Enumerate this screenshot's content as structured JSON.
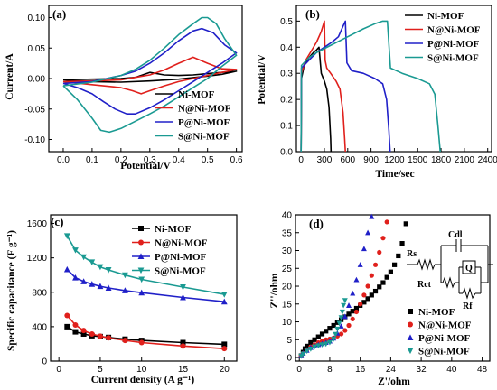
{
  "colors": {
    "ni": "#000000",
    "n": "#e0201c",
    "p": "#2020c8",
    "s": "#1a9a92"
  },
  "circuit": {
    "rs": "Rs",
    "cdl": "Cdl",
    "q": "Q",
    "rct": "Rct",
    "rf": "Rf"
  },
  "chart_data": [
    {
      "type": "line",
      "panel_label": "(a)",
      "xlabel": "Potential/V",
      "ylabel": "Current/A",
      "xlim": [
        -0.05,
        0.62
      ],
      "ylim": [
        -0.12,
        0.12
      ],
      "xticks": [
        0.0,
        0.1,
        0.2,
        0.3,
        0.4,
        0.5,
        0.6
      ],
      "yticks": [
        -0.1,
        -0.05,
        0.0,
        0.05,
        0.1
      ],
      "xtick_labels": [
        "0.0",
        "0.1",
        "0.2",
        "0.3",
        "0.4",
        "0.5",
        "0.6"
      ],
      "ytick_labels": [
        "-0.10",
        "-0.05",
        "0.00",
        "0.05",
        "0.10"
      ],
      "legend_position": "bottom-right",
      "series": [
        {
          "name": "Ni-MOF",
          "color_key": "ni",
          "x": [
            0.0,
            0.1,
            0.2,
            0.25,
            0.3,
            0.35,
            0.4,
            0.45,
            0.5,
            0.55,
            0.6,
            0.55,
            0.5,
            0.4,
            0.3,
            0.2,
            0.1,
            0.0
          ],
          "y": [
            -0.002,
            -0.001,
            0.0,
            0.002,
            0.01,
            0.006,
            0.005,
            0.006,
            0.008,
            0.01,
            0.012,
            0.007,
            0.004,
            -0.001,
            -0.004,
            -0.006,
            -0.005,
            -0.002
          ]
        },
        {
          "name": "N@Ni-MOF",
          "color_key": "n",
          "x": [
            0.0,
            0.1,
            0.2,
            0.25,
            0.3,
            0.35,
            0.4,
            0.45,
            0.5,
            0.55,
            0.6,
            0.55,
            0.5,
            0.45,
            0.4,
            0.35,
            0.3,
            0.27,
            0.24,
            0.2,
            0.1,
            0.0
          ],
          "y": [
            -0.005,
            -0.004,
            -0.002,
            0.002,
            0.006,
            0.014,
            0.025,
            0.035,
            0.025,
            0.016,
            0.015,
            0.01,
            0.005,
            0.0,
            -0.005,
            -0.012,
            -0.02,
            -0.025,
            -0.02,
            -0.015,
            -0.01,
            -0.005
          ]
        },
        {
          "name": "P@Ni-MOF",
          "color_key": "p",
          "x": [
            0.0,
            0.1,
            0.15,
            0.2,
            0.25,
            0.3,
            0.35,
            0.4,
            0.45,
            0.48,
            0.52,
            0.56,
            0.6,
            0.55,
            0.5,
            0.45,
            0.4,
            0.35,
            0.3,
            0.25,
            0.22,
            0.18,
            0.14,
            0.1,
            0.05,
            0.0
          ],
          "y": [
            -0.008,
            -0.005,
            0.0,
            0.005,
            0.012,
            0.025,
            0.042,
            0.062,
            0.078,
            0.082,
            0.075,
            0.055,
            0.042,
            0.025,
            0.01,
            -0.005,
            -0.02,
            -0.035,
            -0.048,
            -0.058,
            -0.058,
            -0.05,
            -0.038,
            -0.025,
            -0.015,
            -0.008
          ]
        },
        {
          "name": "S@Ni-MOF",
          "color_key": "s",
          "x": [
            0.0,
            0.1,
            0.2,
            0.25,
            0.3,
            0.35,
            0.4,
            0.45,
            0.48,
            0.5,
            0.53,
            0.56,
            0.6,
            0.55,
            0.5,
            0.45,
            0.4,
            0.35,
            0.3,
            0.25,
            0.2,
            0.16,
            0.13,
            0.1,
            0.05,
            0.0
          ],
          "y": [
            -0.012,
            -0.006,
            0.005,
            0.015,
            0.03,
            0.05,
            0.072,
            0.09,
            0.1,
            0.1,
            0.09,
            0.065,
            0.038,
            0.02,
            0.0,
            -0.015,
            -0.03,
            -0.045,
            -0.058,
            -0.07,
            -0.082,
            -0.088,
            -0.085,
            -0.065,
            -0.035,
            -0.012
          ]
        }
      ]
    },
    {
      "type": "line",
      "panel_label": "(b)",
      "xlabel": "Time/sec",
      "ylabel": "Potential/V",
      "xlim": [
        -60,
        2450
      ],
      "ylim": [
        0.0,
        0.56
      ],
      "xticks": [
        0,
        300,
        600,
        900,
        1200,
        1500,
        1800,
        2100,
        2400
      ],
      "yticks": [
        0.0,
        0.1,
        0.2,
        0.3,
        0.4,
        0.5
      ],
      "xtick_labels": [
        "0",
        "300",
        "600",
        "900",
        "1200",
        "1500",
        "1800",
        "2100",
        "2400"
      ],
      "ytick_labels": [
        "0.0",
        "0.1",
        "0.2",
        "0.3",
        "0.4",
        "0.5"
      ],
      "legend_position": "top-right",
      "series": [
        {
          "name": "Ni-MOF",
          "color_key": "ni",
          "x": [
            0,
            5,
            40,
            100,
            160,
            200,
            230,
            260,
            300,
            330,
            360,
            380,
            385
          ],
          "y": [
            0.0,
            0.28,
            0.33,
            0.36,
            0.38,
            0.39,
            0.4,
            0.3,
            0.27,
            0.24,
            0.17,
            0.05,
            0.0
          ]
        },
        {
          "name": "N@Ni-MOF",
          "color_key": "n",
          "x": [
            0,
            5,
            60,
            120,
            200,
            260,
            300,
            310,
            330,
            380,
            450,
            500,
            540,
            560,
            570
          ],
          "y": [
            0.0,
            0.3,
            0.35,
            0.38,
            0.42,
            0.46,
            0.5,
            0.35,
            0.32,
            0.3,
            0.27,
            0.24,
            0.15,
            0.05,
            0.0
          ]
        },
        {
          "name": "P@Ni-MOF",
          "color_key": "p",
          "x": [
            0,
            5,
            100,
            200,
            300,
            400,
            480,
            540,
            570,
            590,
            650,
            800,
            950,
            1050,
            1100,
            1130,
            1145
          ],
          "y": [
            0.0,
            0.32,
            0.35,
            0.38,
            0.4,
            0.42,
            0.44,
            0.48,
            0.5,
            0.34,
            0.31,
            0.3,
            0.28,
            0.26,
            0.2,
            0.08,
            0.0
          ]
        },
        {
          "name": "S@Ni-MOF",
          "color_key": "s",
          "x": [
            0,
            5,
            100,
            200,
            400,
            600,
            800,
            950,
            1050,
            1110,
            1150,
            1300,
            1500,
            1650,
            1720,
            1760,
            1790
          ],
          "y": [
            0.0,
            0.33,
            0.36,
            0.38,
            0.41,
            0.44,
            0.47,
            0.49,
            0.5,
            0.5,
            0.32,
            0.3,
            0.28,
            0.26,
            0.22,
            0.1,
            0.0
          ]
        }
      ]
    },
    {
      "type": "line",
      "panel_label": "(c)",
      "xlabel": "Current density (A g⁻¹)",
      "ylabel": "Specific capacitance (F g⁻¹)",
      "xlim": [
        -1,
        21.5
      ],
      "ylim": [
        0,
        1700
      ],
      "xticks": [
        0,
        5,
        10,
        15,
        20
      ],
      "yticks": [
        0,
        400,
        800,
        1200,
        1600
      ],
      "xtick_labels": [
        "0",
        "5",
        "10",
        "15",
        "20"
      ],
      "ytick_labels": [
        "0",
        "400",
        "800",
        "1200",
        "1600"
      ],
      "legend_position": "top-right",
      "series": [
        {
          "name": "Ni-MOF",
          "marker": "square",
          "color_key": "ni",
          "x": [
            1,
            2,
            3,
            4,
            5,
            6,
            8,
            10,
            15,
            20
          ],
          "y": [
            400,
            340,
            315,
            295,
            285,
            275,
            255,
            240,
            215,
            195
          ]
        },
        {
          "name": "N@Ni-MOF",
          "marker": "circle",
          "color_key": "n",
          "x": [
            1,
            2,
            3,
            4,
            5,
            6,
            8,
            10,
            15,
            20
          ],
          "y": [
            530,
            420,
            355,
            315,
            290,
            270,
            240,
            215,
            175,
            145
          ]
        },
        {
          "name": "P@Ni-MOF",
          "marker": "triangle",
          "color_key": "p",
          "x": [
            1,
            2,
            3,
            4,
            5,
            6,
            8,
            10,
            15,
            20
          ],
          "y": [
            1065,
            970,
            925,
            895,
            870,
            850,
            820,
            795,
            740,
            690
          ]
        },
        {
          "name": "S@Ni-MOF",
          "marker": "triangle-down",
          "color_key": "s",
          "x": [
            1,
            2,
            3,
            4,
            5,
            6,
            8,
            10,
            15,
            20
          ],
          "y": [
            1455,
            1290,
            1210,
            1150,
            1095,
            1060,
            1000,
            950,
            860,
            775
          ]
        }
      ]
    },
    {
      "type": "scatter",
      "panel_label": "(d)",
      "xlabel": "Z'/ohm",
      "ylabel": "Z''/ohm",
      "xlim": [
        -1,
        50
      ],
      "ylim": [
        -1,
        40
      ],
      "xticks": [
        0,
        8,
        16,
        24,
        32,
        40,
        48
      ],
      "yticks": [
        0,
        5,
        10,
        15,
        20,
        25,
        30,
        35,
        40
      ],
      "xtick_labels": [
        "0",
        "8",
        "16",
        "24",
        "32",
        "40",
        "48"
      ],
      "ytick_labels": [
        "0",
        "5",
        "10",
        "15",
        "20",
        "25",
        "30",
        "35",
        "40"
      ],
      "legend_position": "bottom-right",
      "series": [
        {
          "name": "Ni-MOF",
          "marker": "square",
          "color_key": "ni",
          "x": [
            0.5,
            1,
            1.5,
            2,
            3,
            4,
            5,
            6,
            7,
            8,
            9,
            10,
            11,
            12,
            13,
            14,
            15,
            16,
            17,
            18,
            19,
            20,
            21,
            22,
            23,
            24,
            25,
            26,
            27,
            28
          ],
          "y": [
            0.5,
            1.5,
            2.5,
            3.2,
            4.2,
            5.0,
            5.8,
            6.6,
            7.4,
            8.2,
            9.0,
            9.8,
            10.6,
            11.4,
            12.2,
            13.0,
            13.8,
            14.6,
            15.5,
            16.5,
            17.5,
            18.6,
            19.8,
            21.0,
            22.5,
            24.0,
            26.0,
            28.5,
            32.0,
            37.5
          ]
        },
        {
          "name": "N@Ni-MOF",
          "marker": "circle",
          "color_key": "n",
          "x": [
            0.5,
            1,
            2,
            3,
            4,
            5,
            6,
            7,
            8,
            9,
            10,
            11,
            12,
            13,
            14,
            15,
            16,
            17,
            18,
            19,
            20,
            21,
            22,
            23
          ],
          "y": [
            0.5,
            1.2,
            2.2,
            3.0,
            3.6,
            4.2,
            4.6,
            5.0,
            5.2,
            5.5,
            6.0,
            6.6,
            7.6,
            9.0,
            10.8,
            12.8,
            15.0,
            17.5,
            20.0,
            23.0,
            26.0,
            29.5,
            33.5,
            38.0
          ]
        },
        {
          "name": "P@Ni-MOF",
          "marker": "triangle",
          "color_key": "p",
          "x": [
            0.5,
            1,
            2,
            3,
            4,
            5,
            6,
            7,
            8,
            9,
            10,
            11,
            12,
            13,
            14,
            15,
            16,
            17,
            18,
            19
          ],
          "y": [
            0.5,
            1.2,
            2.0,
            2.8,
            3.2,
            3.6,
            3.9,
            4.2,
            4.6,
            5.4,
            6.8,
            8.8,
            11.5,
            14.6,
            18.0,
            21.8,
            26.0,
            30.5,
            35.0,
            39.5
          ]
        },
        {
          "name": "S@Ni-MOF",
          "marker": "triangle-down",
          "color_key": "s",
          "x": [
            0.5,
            1,
            2,
            3,
            4,
            5,
            6,
            7,
            8,
            9,
            9.5,
            10,
            10.5,
            11,
            11.3,
            11.6,
            12
          ],
          "y": [
            0.4,
            1.0,
            1.8,
            2.4,
            3.0,
            3.3,
            3.6,
            3.8,
            4.2,
            5.2,
            6.5,
            8.0,
            9.6,
            11.2,
            12.8,
            14.6,
            16.0
          ]
        }
      ]
    }
  ]
}
